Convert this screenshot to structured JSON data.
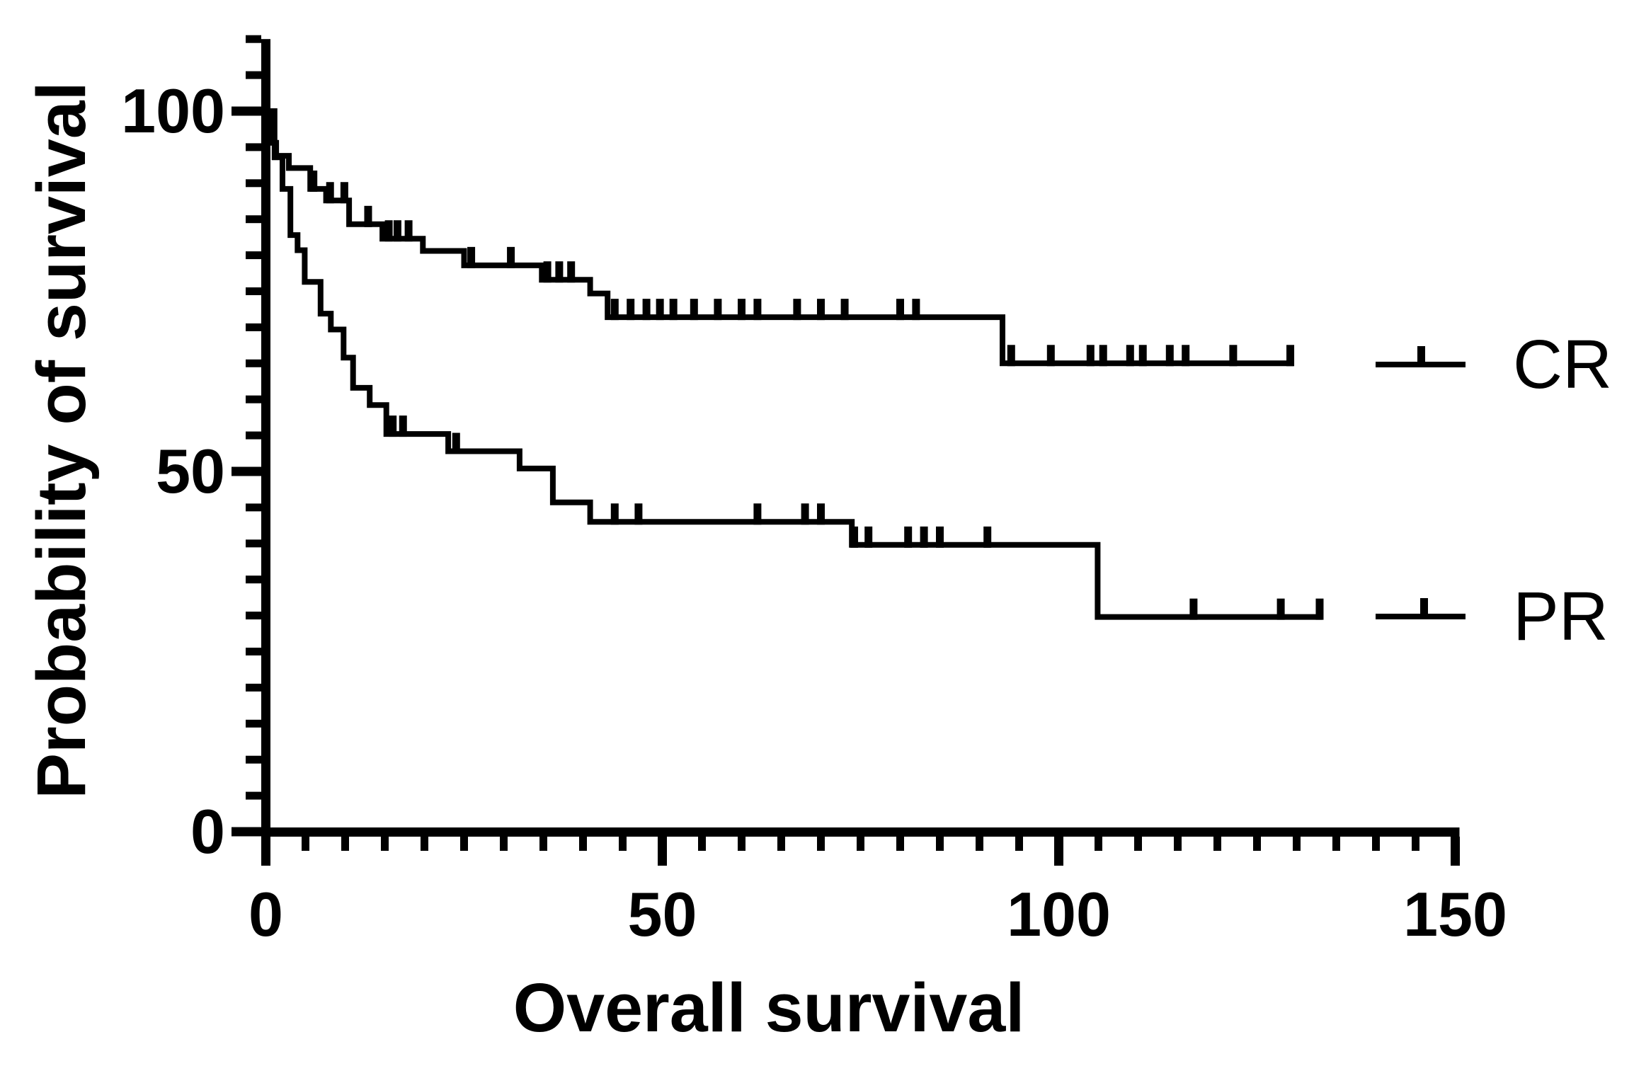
{
  "chart_data": {
    "type": "line",
    "subtype": "kaplan-meier-step-plot",
    "title": "",
    "xlabel": "Overall survival",
    "ylabel": "Probability of survival",
    "xlim": [
      0,
      150
    ],
    "ylim": [
      0,
      110
    ],
    "x_major_ticks": [
      0,
      50,
      100,
      150
    ],
    "x_major_tick_labels": [
      "0",
      "50",
      "100",
      "150"
    ],
    "y_major_ticks": [
      0,
      50,
      100
    ],
    "y_major_tick_labels": [
      "0",
      "50",
      "100"
    ],
    "minor_tick_step": 5,
    "grid": false,
    "legend_position": "right",
    "axis_color": "#000000",
    "background_color": "#ffffff",
    "series": [
      {
        "name": "CR",
        "color": "#000000",
        "steps": [
          [
            0,
            100
          ],
          [
            0.7,
            95.6
          ],
          [
            1.3,
            93.8
          ],
          [
            2.9,
            92.1
          ],
          [
            5.6,
            89.2
          ],
          [
            7.6,
            87.6
          ],
          [
            10.5,
            84.3
          ],
          [
            14.7,
            82.3
          ],
          [
            19.8,
            80.6
          ],
          [
            25,
            78.6
          ],
          [
            34.8,
            76.6
          ],
          [
            40.9,
            74.7
          ],
          [
            43.1,
            71.4
          ],
          [
            92.9,
            65
          ]
        ],
        "end_x": 129.6,
        "censors": [
          [
            6,
            89.2
          ],
          [
            8.1,
            87.6
          ],
          [
            9.9,
            87.6
          ],
          [
            12.9,
            84.3
          ],
          [
            15.5,
            82.3
          ],
          [
            16.6,
            82.3
          ],
          [
            18,
            82.3
          ],
          [
            25.9,
            78.6
          ],
          [
            30.9,
            78.6
          ],
          [
            35.5,
            76.6
          ],
          [
            37,
            76.6
          ],
          [
            38.5,
            76.6
          ],
          [
            44,
            71.4
          ],
          [
            46,
            71.4
          ],
          [
            48,
            71.4
          ],
          [
            49.7,
            71.4
          ],
          [
            51.4,
            71.4
          ],
          [
            54,
            71.4
          ],
          [
            57,
            71.4
          ],
          [
            60,
            71.4
          ],
          [
            62,
            71.4
          ],
          [
            67,
            71.4
          ],
          [
            70,
            71.4
          ],
          [
            73,
            71.4
          ],
          [
            80,
            71.4
          ],
          [
            82,
            71.4
          ],
          [
            94,
            65
          ],
          [
            99,
            65
          ],
          [
            104,
            65
          ],
          [
            105.6,
            65
          ],
          [
            109,
            65
          ],
          [
            110.6,
            65
          ],
          [
            114,
            65
          ],
          [
            116,
            65
          ],
          [
            122,
            65
          ],
          [
            129.2,
            65
          ]
        ]
      },
      {
        "name": "PR",
        "color": "#000000",
        "steps": [
          [
            0,
            100
          ],
          [
            1.1,
            93.6
          ],
          [
            2.1,
            89.2
          ],
          [
            3.1,
            82.8
          ],
          [
            4,
            80.7
          ],
          [
            4.9,
            76.3
          ],
          [
            6.9,
            71.9
          ],
          [
            8.2,
            69.7
          ],
          [
            9.8,
            65.8
          ],
          [
            11,
            61.6
          ],
          [
            13.1,
            59.2
          ],
          [
            15.2,
            55.2
          ],
          [
            23,
            52.8
          ],
          [
            32,
            50.4
          ],
          [
            36.2,
            45.7
          ],
          [
            40.9,
            43
          ],
          [
            73.9,
            39.8
          ],
          [
            104.9,
            29.8
          ]
        ],
        "end_x": 133.2,
        "censors": [
          [
            16,
            55.2
          ],
          [
            17.3,
            55.2
          ],
          [
            24,
            52.8
          ],
          [
            44,
            43
          ],
          [
            47,
            43
          ],
          [
            62,
            43
          ],
          [
            68,
            43
          ],
          [
            70,
            43
          ],
          [
            74.2,
            39.8
          ],
          [
            76,
            39.8
          ],
          [
            81,
            39.8
          ],
          [
            83,
            39.8
          ],
          [
            85,
            39.8
          ],
          [
            91,
            39.8
          ],
          [
            117,
            29.8
          ],
          [
            128,
            29.8
          ],
          [
            132.9,
            29.8
          ]
        ]
      }
    ]
  },
  "legend": {
    "items": [
      {
        "label": "CR"
      },
      {
        "label": "PR"
      }
    ]
  }
}
